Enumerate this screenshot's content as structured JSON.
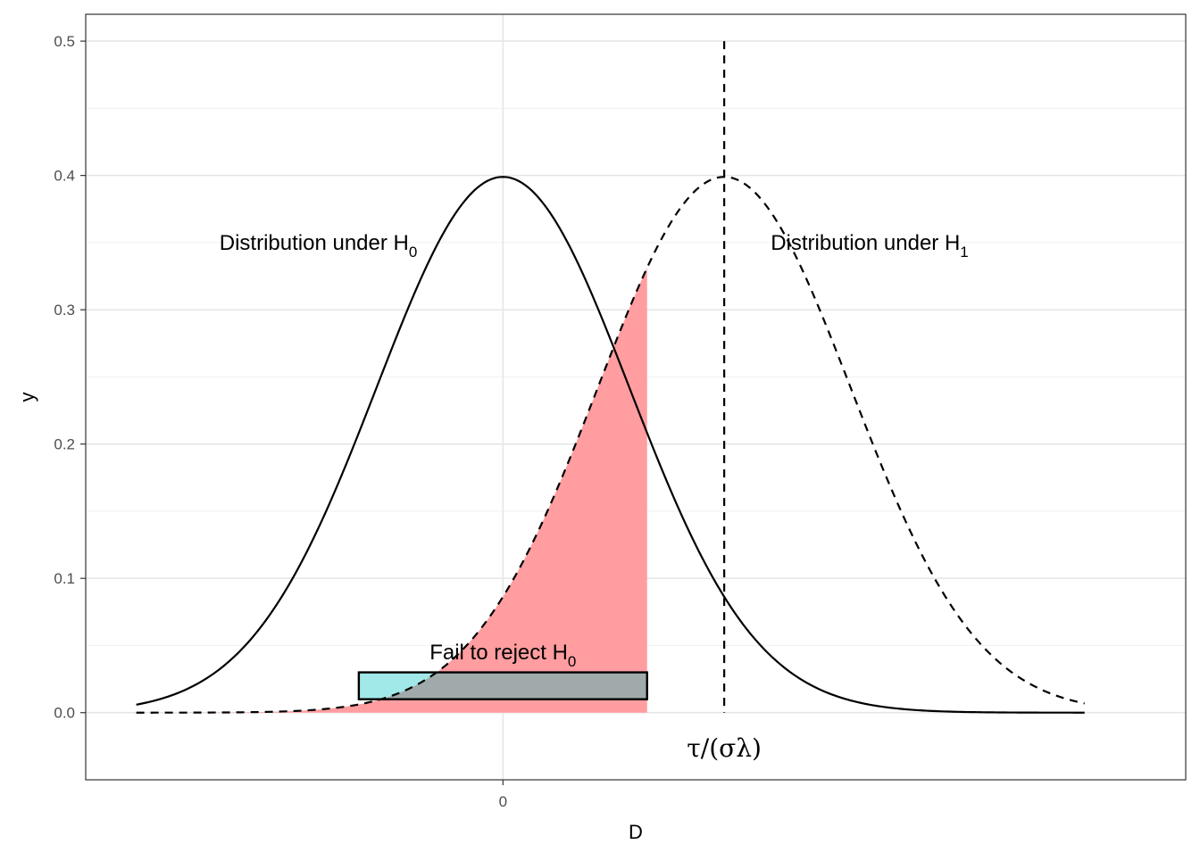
{
  "chart_data": {
    "type": "line",
    "xlabel": "D",
    "ylabel": "y",
    "xlim": [
      -3.3,
      5.4
    ],
    "ylim": [
      -0.05,
      0.52
    ],
    "x_ticks": [
      {
        "value": 0,
        "label": "0"
      }
    ],
    "y_ticks": [
      {
        "value": 0.0,
        "label": "0.0"
      },
      {
        "value": 0.1,
        "label": "0.1"
      },
      {
        "value": 0.2,
        "label": "0.2"
      },
      {
        "value": 0.3,
        "label": "0.3"
      },
      {
        "value": 0.4,
        "label": "0.4"
      },
      {
        "value": 0.5,
        "label": "0.5"
      }
    ],
    "grid": true,
    "theme": "bw",
    "series": [
      {
        "kind": "normal-density",
        "mean": 0,
        "sd": 1,
        "x_range": [
          -2.9,
          4.6
        ],
        "linetype": "solid",
        "color": "#000000"
      },
      {
        "kind": "normal-density",
        "mean": 1.75,
        "sd": 1,
        "x_range": [
          -2.9,
          4.6
        ],
        "linetype": "dashed",
        "color": "#000000"
      }
    ],
    "shaded_area": {
      "under": "second-density",
      "x_from": -2.9,
      "x_to": 1.14,
      "fill": "#ff9da0"
    },
    "reference_line": {
      "x": 1.75,
      "y_to": 0.5,
      "linetype": "dashed"
    },
    "rect": {
      "x_from": -1.14,
      "x_to": 1.14,
      "y_from": 0.01,
      "y_to": 0.03,
      "fill": "#a1e8e8",
      "overlap_fill": "#a1aaaa",
      "stroke": "#000000"
    },
    "annotations": [
      {
        "id": "h0",
        "text": "Distribution under H",
        "sub": "0",
        "x": -1.46,
        "y": 0.35
      },
      {
        "id": "h1",
        "text": "Distribution under H",
        "sub": "1",
        "x": 2.9,
        "y": 0.35
      },
      {
        "id": "fail",
        "text": "Fail to reject H",
        "sub": "0",
        "x": 0.0,
        "y": 0.045
      },
      {
        "id": "tau",
        "text": "τ/(σλ)",
        "x": 1.75,
        "y": -0.026
      }
    ]
  }
}
